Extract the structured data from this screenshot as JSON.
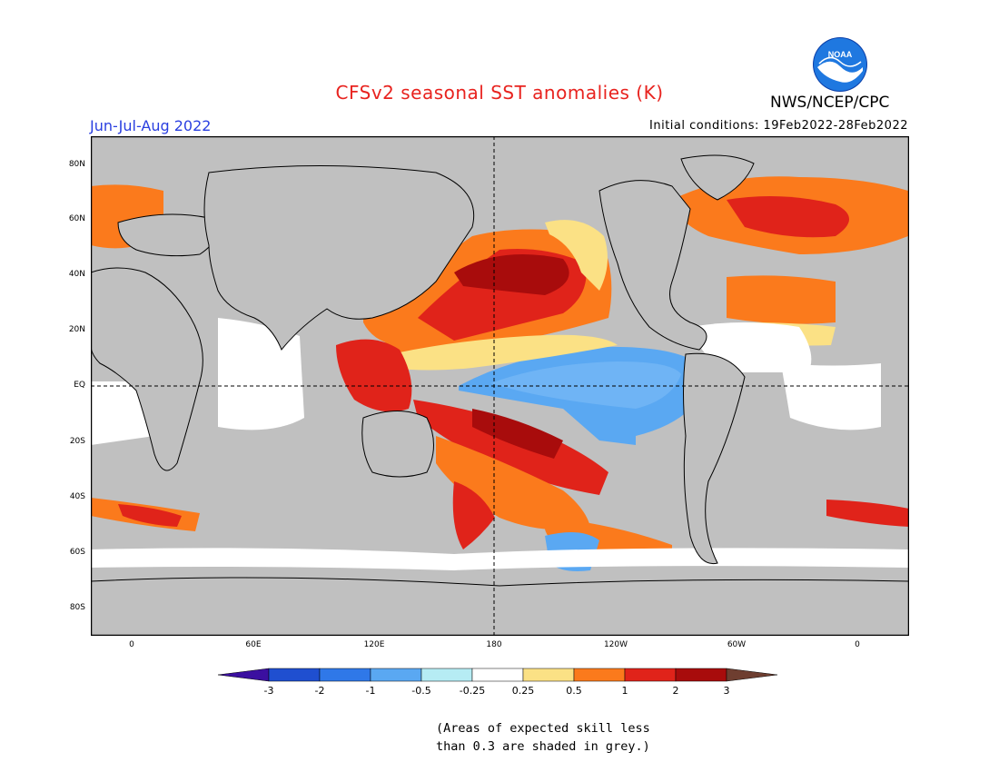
{
  "header": {
    "title": "CFSv2 seasonal SST anomalies (K)",
    "agency": "NWS/NCEP/CPC",
    "logo_text": "NOAA",
    "season": "Jun-Jul-Aug 2022",
    "initial_conditions": "Initial conditions: 19Feb2022-28Feb2022"
  },
  "map": {
    "land_color": "#c0c0c0",
    "ocean_neutral": "#ffffff",
    "lat_labels": [
      "80N",
      "60N",
      "40N",
      "20N",
      "EQ",
      "20S",
      "40S",
      "60S",
      "80S"
    ],
    "lon_labels": [
      "0",
      "60E",
      "120E",
      "180",
      "120W",
      "60W",
      "0"
    ]
  },
  "colorbar": {
    "labels": [
      "-3",
      "-2",
      "-1",
      "-0.5",
      "-0.25",
      "0.25",
      "0.5",
      "1",
      "2",
      "3"
    ],
    "colors": [
      "#3b0fa0",
      "#1f4fd0",
      "#2f78e8",
      "#5aa8f2",
      "#b6ecf4",
      "#ffffff",
      "#fbe185",
      "#fb7a1c",
      "#e0231a",
      "#a80c0c",
      "#6e3e30"
    ]
  },
  "footnote": {
    "line1": "(Areas of expected skill less",
    "line2": "than 0.3 are shaded in grey.)"
  }
}
